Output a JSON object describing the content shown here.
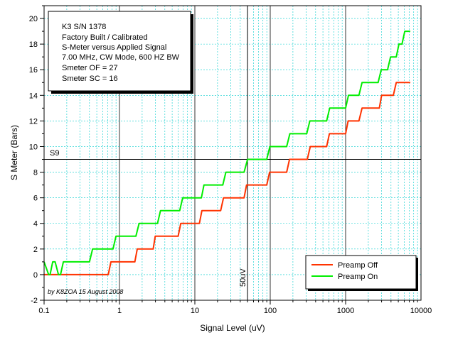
{
  "chart_data": {
    "type": "line",
    "xlabel": "Signal Level (uV)",
    "ylabel": "S Meter (Bars)",
    "xscale": "log",
    "xlim": [
      0.1,
      10000
    ],
    "ylim": [
      -2,
      21
    ],
    "grid": true,
    "x_ticks": [
      "0.1",
      "1",
      "10",
      "100",
      "1000",
      "10000"
    ],
    "y_ticks": [
      "-2",
      "0",
      "2",
      "4",
      "6",
      "8",
      "10",
      "12",
      "14",
      "16",
      "18",
      "20"
    ],
    "info_box": [
      "K3 S/N 1378",
      "Factory Built / Calibrated",
      "S-Meter versus Applied Signal",
      "7.00 MHz, CW Mode, 600 HZ BW",
      "Smeter OF = 27",
      "Smeter SC = 16"
    ],
    "reference_lines": {
      "horizontal": {
        "y": 9,
        "label": "S9"
      },
      "vertical": {
        "x": 50,
        "label": "50uV"
      }
    },
    "credit": "by K8ZOA 15 August 2008",
    "legend_position": "bottom-right",
    "series": [
      {
        "name": "Preamp Off",
        "color": "#ff3300",
        "x": [
          0.1,
          0.71,
          0.77,
          1.6,
          1.72,
          2.8,
          2.98,
          6.0,
          6.5,
          11.5,
          12.4,
          22,
          24,
          45,
          48.5,
          90,
          98,
          165,
          180,
          310,
          340,
          560,
          610,
          1000,
          1080,
          1500,
          1650,
          2800,
          3000,
          4300,
          4700,
          7200
        ],
        "y": [
          0,
          0,
          1,
          1,
          2,
          2,
          3,
          3,
          4,
          4,
          5,
          5,
          6,
          6,
          7,
          7,
          8,
          8,
          9,
          9,
          10,
          10,
          11,
          11,
          12,
          12,
          13,
          13,
          14,
          14,
          15,
          15
        ]
      },
      {
        "name": "Preamp On",
        "color": "#00ee00",
        "x": [
          0.1,
          0.115,
          0.12,
          0.13,
          0.14,
          0.155,
          0.165,
          0.18,
          0.4,
          0.44,
          0.82,
          0.9,
          1.65,
          1.82,
          3.2,
          3.5,
          6.3,
          6.9,
          12.2,
          13.2,
          23.5,
          25.8,
          45,
          50,
          90,
          99,
          165,
          182,
          305,
          335,
          560,
          615,
          1000,
          1090,
          1500,
          1650,
          2700,
          2970,
          3600,
          3950,
          4700,
          5100,
          5600,
          6100,
          7200
        ],
        "y": [
          1,
          0,
          0,
          1,
          1,
          0,
          0,
          1,
          1,
          2,
          2,
          3,
          3,
          4,
          4,
          5,
          5,
          6,
          6,
          7,
          7,
          8,
          8,
          9,
          9,
          10,
          10,
          11,
          11,
          12,
          12,
          13,
          13,
          14,
          14,
          15,
          15,
          16,
          16,
          17,
          17,
          18,
          18,
          19,
          19
        ]
      }
    ]
  }
}
